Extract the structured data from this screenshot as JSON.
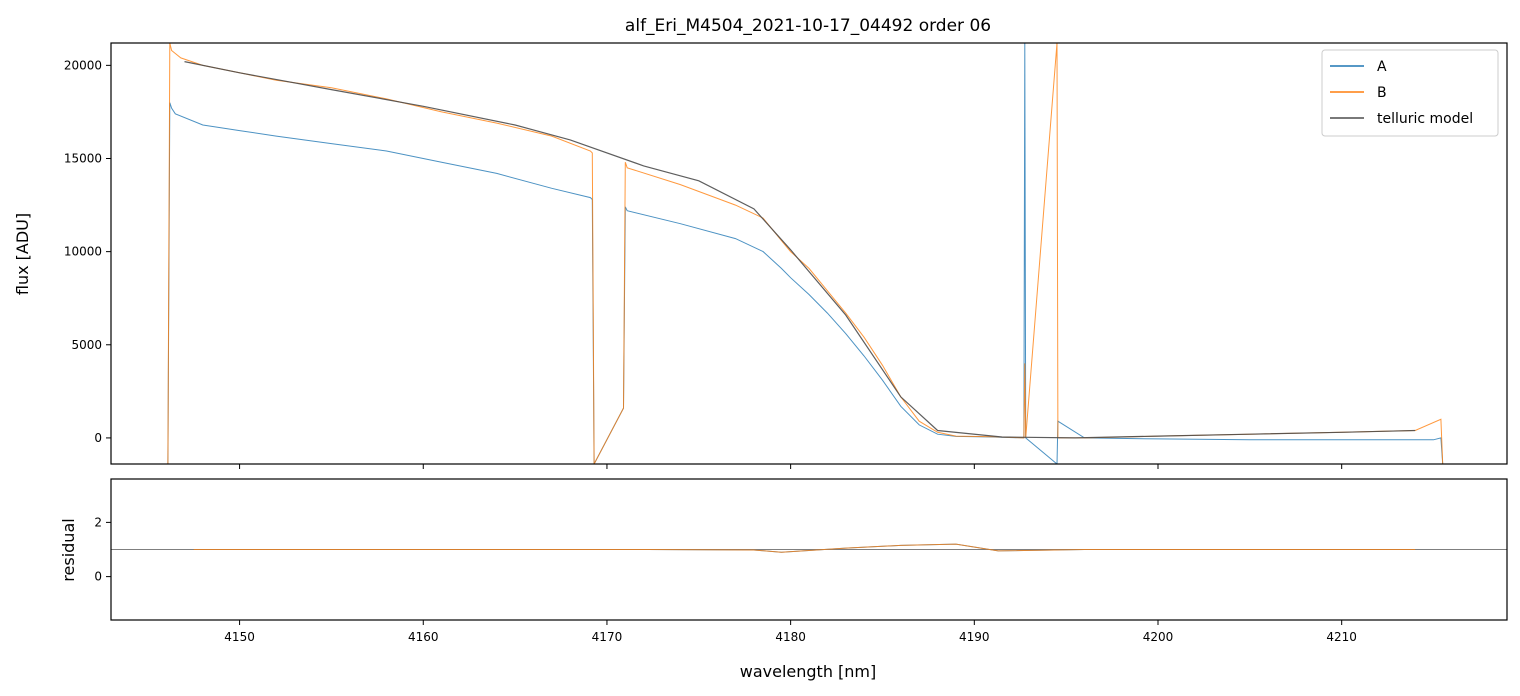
{
  "chart_data": [
    {
      "panel": "top",
      "type": "line",
      "title": "alf_Eri_M4504_2021-10-17_04492  order 06",
      "xlabel": "",
      "ylabel": "flux [ADU]",
      "xlim": [
        4143,
        4219
      ],
      "ylim": [
        -1400,
        21200
      ],
      "yticks": [
        0,
        5000,
        10000,
        15000,
        20000
      ],
      "ytick_labels": [
        "0",
        "5000",
        "10000",
        "15000",
        "20000"
      ],
      "xticks": [
        4150,
        4160,
        4170,
        4180,
        4190,
        4200,
        4210
      ],
      "legend": {
        "placement": "top-right",
        "entries": [
          "A",
          "B",
          "telluric model"
        ]
      },
      "series": [
        {
          "name": "A",
          "color": "#1f77b4",
          "x": [
            4146.1,
            4146.2,
            4146.3,
            4146.5,
            4148.0,
            4150.0,
            4152.0,
            4155.0,
            4158.0,
            4161.0,
            4164.0,
            4167.0,
            4169.1,
            4169.2,
            4169.3,
            4170.9,
            4171.0,
            4171.1,
            4174.0,
            4177.0,
            4178.5,
            4179.5,
            4180.0,
            4181.0,
            4182.0,
            4183.0,
            4184.0,
            4185.0,
            4186.0,
            4187.0,
            4188.0,
            4189.0,
            4191.0,
            4192.7,
            4192.75,
            4192.8,
            4194.5,
            4194.55,
            4196.0,
            4200.0,
            4205.0,
            4210.0,
            4215.0,
            4215.4,
            4215.5
          ],
          "y": [
            -1400,
            18000,
            17700,
            17400,
            16800,
            16500,
            16200,
            15800,
            15400,
            14800,
            14200,
            13400,
            12900,
            12800,
            -1400,
            1600,
            12400,
            12200,
            11500,
            10700,
            10000,
            9100,
            8600,
            7700,
            6700,
            5600,
            4400,
            3100,
            1700,
            700,
            200,
            80,
            50,
            0,
            21200,
            0,
            -1400,
            900,
            0,
            -50,
            -100,
            -100,
            -100,
            0,
            -1400
          ]
        },
        {
          "name": "B",
          "color": "#ff7f0e",
          "x": [
            4146.1,
            4146.2,
            4146.3,
            4146.8,
            4148.0,
            4150.0,
            4152.0,
            4155.0,
            4158.0,
            4161.0,
            4164.0,
            4167.0,
            4169.1,
            4169.2,
            4169.3,
            4170.9,
            4171.0,
            4171.1,
            4174.0,
            4177.0,
            4178.5,
            4179.5,
            4180.0,
            4181.0,
            4182.0,
            4183.0,
            4184.0,
            4185.0,
            4186.0,
            4187.0,
            4188.0,
            4189.0,
            4191.0,
            4192.7,
            4192.75,
            4192.8,
            4194.5,
            4194.55,
            4196.0,
            4200.0,
            4205.0,
            4210.0,
            4214.0,
            4215.4,
            4215.5
          ],
          "y": [
            -1400,
            21200,
            20800,
            20400,
            20000,
            19600,
            19200,
            18800,
            18200,
            17500,
            16900,
            16200,
            15400,
            15300,
            -1400,
            1600,
            14800,
            14500,
            13600,
            12500,
            11800,
            10600,
            10000,
            9100,
            7900,
            6700,
            5400,
            3900,
            2200,
            900,
            300,
            100,
            60,
            0,
            4000,
            0,
            21200,
            0,
            0,
            100,
            200,
            300,
            400,
            1000,
            -1400
          ]
        },
        {
          "name": "telluric model",
          "color": "#4d4d4d",
          "x": [
            4147.0,
            4150.0,
            4155.0,
            4160.0,
            4165.0,
            4168.0,
            4172.0,
            4175.0,
            4178.0,
            4180.0,
            4183.0,
            4186.0,
            4188.0,
            4191.5,
            4195.5,
            4200.0,
            4205.0,
            4210.0,
            4214.0
          ],
          "y": [
            20200,
            19600,
            18700,
            17800,
            16800,
            16000,
            14600,
            13800,
            12300,
            10100,
            6600,
            2200,
            400,
            50,
            0,
            100,
            200,
            300,
            400
          ]
        }
      ]
    },
    {
      "panel": "bottom",
      "type": "line",
      "title": "",
      "xlabel": "wavelength [nm]",
      "ylabel": "residual",
      "xlim": [
        4143,
        4219
      ],
      "ylim": [
        -1.6,
        3.6
      ],
      "yticks": [
        0,
        2
      ],
      "ytick_labels": [
        "0",
        "2"
      ],
      "xticks": [
        4150,
        4160,
        4170,
        4180,
        4190,
        4200,
        4210
      ],
      "xtick_labels": [
        "4150",
        "4160",
        "4170",
        "4180",
        "4190",
        "4200",
        "4210"
      ],
      "reference_line": 1.0,
      "series": [
        {
          "name": "A",
          "color": "#1f77b4",
          "x": [
            4147.5,
            4168.0,
            4172.2,
            4178.0,
            4179.5,
            4183.0,
            4186.0,
            4189.0,
            4191.3,
            4196.0,
            4214.0
          ],
          "y": [
            1.0,
            1.0,
            1.0,
            0.98,
            0.9,
            1.05,
            1.15,
            1.2,
            0.95,
            1.0,
            1.0
          ]
        },
        {
          "name": "B",
          "color": "#ff7f0e",
          "x": [
            4147.5,
            4168.0,
            4172.2,
            4178.0,
            4179.5,
            4183.0,
            4186.0,
            4189.0,
            4191.3,
            4196.0,
            4214.0
          ],
          "y": [
            1.0,
            1.0,
            1.0,
            0.98,
            0.9,
            1.05,
            1.15,
            1.2,
            0.95,
            1.0,
            1.0
          ]
        }
      ]
    }
  ]
}
